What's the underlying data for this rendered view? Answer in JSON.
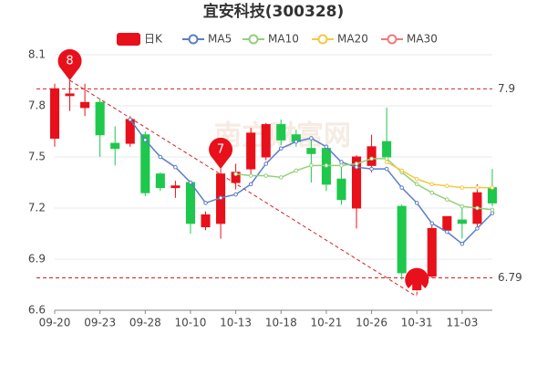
{
  "chart_data": {
    "type": "candlestick",
    "title": "宜安科技(300328)",
    "watermark": "南方财富网",
    "categories": [
      "09-20",
      null,
      null,
      "09-23",
      null,
      null,
      "09-28",
      null,
      null,
      "10-10",
      null,
      null,
      "10-13",
      null,
      null,
      "10-18",
      null,
      null,
      "10-21",
      null,
      null,
      "10-26",
      null,
      null,
      "10-31",
      null,
      null,
      "11-03",
      null,
      null
    ],
    "candle_name": "日K",
    "up_color": "#e8101a",
    "down_color": "#1ec84c",
    "open": [
      7.61,
      7.86,
      7.79,
      7.82,
      7.58,
      7.58,
      7.63,
      7.4,
      7.32,
      7.35,
      7.09,
      7.11,
      7.35,
      7.43,
      7.5,
      7.69,
      7.63,
      7.55,
      7.55,
      7.37,
      7.2,
      7.45,
      7.59,
      7.21,
      6.72,
      6.8,
      7.07,
      7.13,
      7.11,
      7.32
    ],
    "high": [
      7.93,
      7.95,
      7.93,
      7.84,
      7.68,
      7.74,
      7.65,
      7.41,
      7.36,
      7.36,
      7.18,
      7.43,
      7.46,
      7.67,
      7.7,
      7.72,
      7.66,
      7.6,
      7.57,
      7.45,
      7.51,
      7.63,
      7.79,
      7.22,
      6.83,
      7.1,
      7.15,
      7.2,
      7.34,
      7.43
    ],
    "low": [
      7.56,
      7.77,
      7.74,
      7.5,
      7.45,
      7.56,
      7.27,
      7.3,
      7.26,
      7.05,
      7.07,
      7.02,
      7.31,
      7.4,
      7.48,
      7.57,
      7.56,
      7.35,
      7.3,
      7.22,
      7.08,
      7.41,
      7.48,
      6.78,
      6.68,
      6.79,
      7.05,
      7.02,
      7.09,
      7.21
    ],
    "close": [
      7.9,
      7.87,
      7.82,
      7.63,
      7.55,
      7.72,
      7.29,
      7.32,
      7.33,
      7.11,
      7.16,
      7.4,
      7.41,
      7.64,
      7.69,
      7.6,
      7.59,
      7.52,
      7.34,
      7.25,
      7.5,
      7.56,
      7.5,
      6.82,
      6.81,
      7.08,
      7.15,
      7.11,
      7.29,
      7.23
    ],
    "series": [
      {
        "name": "MA5",
        "color": "#5b7fc4",
        "values": [
          null,
          null,
          null,
          null,
          null,
          7.72,
          7.6,
          7.5,
          7.44,
          7.35,
          7.23,
          7.26,
          7.28,
          7.34,
          7.46,
          7.55,
          7.59,
          7.61,
          7.56,
          7.47,
          7.44,
          7.43,
          7.43,
          7.32,
          7.23,
          7.11,
          7.06,
          6.99,
          7.08,
          7.17
        ]
      },
      {
        "name": "MA10",
        "color": "#93d07a",
        "values": [
          null,
          null,
          null,
          null,
          null,
          null,
          null,
          null,
          null,
          null,
          null,
          null,
          7.4,
          7.39,
          7.39,
          7.38,
          7.42,
          7.45,
          7.45,
          7.45,
          7.46,
          7.49,
          7.49,
          7.41,
          7.34,
          7.29,
          7.25,
          7.21,
          7.2,
          7.19
        ]
      },
      {
        "name": "MA20",
        "color": "#f5c842",
        "values": [
          null,
          null,
          null,
          null,
          null,
          null,
          null,
          null,
          null,
          null,
          null,
          null,
          null,
          null,
          null,
          null,
          null,
          null,
          null,
          null,
          null,
          null,
          7.47,
          7.42,
          7.37,
          7.34,
          7.33,
          7.32,
          7.32,
          7.32
        ]
      },
      {
        "name": "MA30",
        "color": "#f07a7a",
        "values": [
          null,
          null,
          null,
          null,
          null,
          null,
          null,
          null,
          null,
          null,
          null,
          null,
          null,
          null,
          null,
          null,
          null,
          null,
          null,
          null,
          null,
          null,
          null,
          null,
          null,
          null,
          null,
          null,
          null,
          null
        ]
      }
    ],
    "reference_lines": [
      7.9,
      6.79
    ],
    "annotations": [
      {
        "text": "8"
      },
      {
        "text": "7"
      },
      {
        "text": "7"
      }
    ],
    "ylim": [
      6.6,
      8.1
    ],
    "yticks": [
      6.6,
      6.9,
      7.2,
      7.5,
      7.8,
      8.1
    ],
    "grid": true
  }
}
